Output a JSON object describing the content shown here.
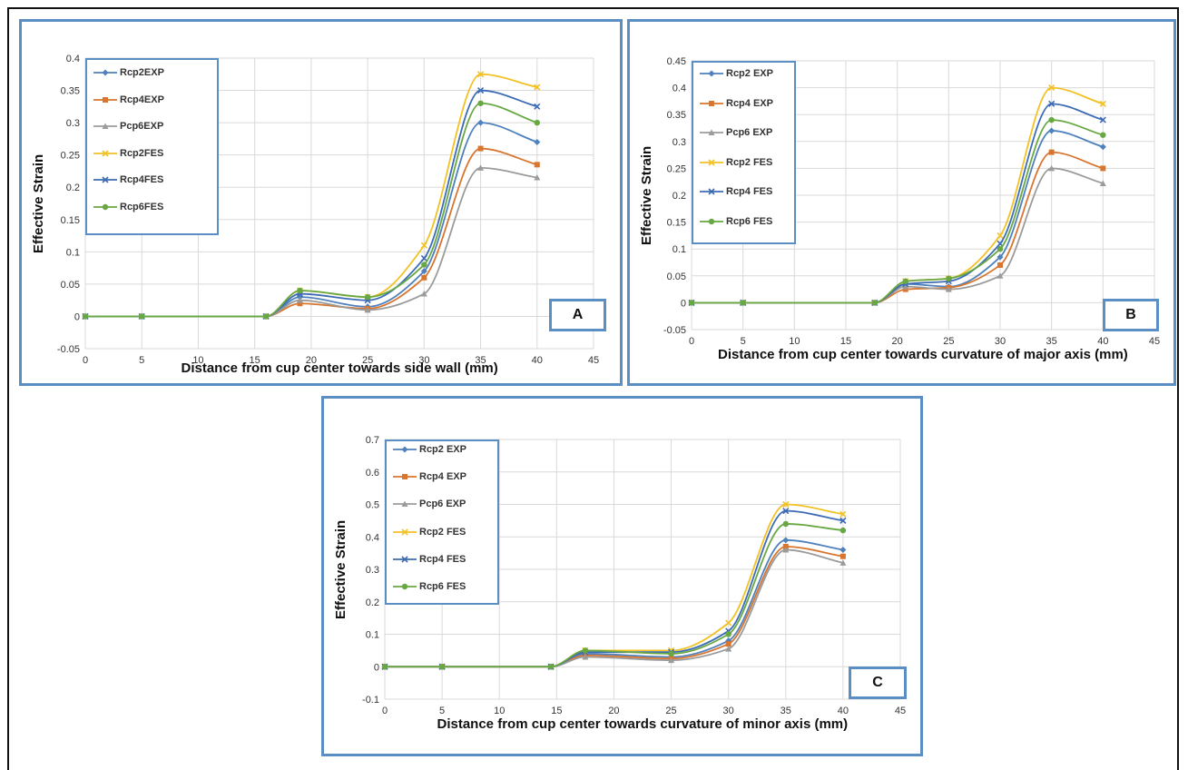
{
  "chart_data": [
    {
      "type": "line",
      "panel_label": "A",
      "xlabel": "Distance from cup center towards side wall (mm)",
      "ylabel": "Effective Strain",
      "xlim": [
        0,
        45
      ],
      "ylim": [
        -0.05,
        0.4
      ],
      "xticks": [
        0,
        5,
        10,
        15,
        20,
        25,
        30,
        35,
        40,
        45
      ],
      "yticks": [
        -0.05,
        0,
        0.05,
        0.1,
        0.15,
        0.2,
        0.25,
        0.3,
        0.35,
        0.4
      ],
      "ytick_labels": [
        "-0.05",
        "0",
        "0.05",
        "0.1",
        "0.15",
        "0.2",
        "0.25",
        "0.3",
        "0.35",
        "0.4"
      ],
      "grid": true,
      "legend_position": "top-left",
      "x": [
        0,
        5,
        16,
        19,
        25,
        30,
        35,
        40
      ],
      "series": [
        {
          "name": "Rcp2EXP",
          "color": "#4e81bd",
          "marker": "diamond",
          "values": [
            0,
            0,
            0,
            0.03,
            0.015,
            0.07,
            0.3,
            0.27
          ]
        },
        {
          "name": "Rcp4EXP",
          "color": "#d8752e",
          "marker": "square",
          "values": [
            0,
            0,
            0,
            0.02,
            0.012,
            0.06,
            0.26,
            0.235
          ]
        },
        {
          "name": "Pcp6EXP",
          "color": "#9b9b9b",
          "marker": "triangle",
          "values": [
            0,
            0,
            0,
            0.025,
            0.01,
            0.035,
            0.23,
            0.215
          ]
        },
        {
          "name": "Rcp2FES",
          "color": "#f2c124",
          "marker": "x",
          "values": [
            0,
            0,
            0,
            0.04,
            0.03,
            0.11,
            0.375,
            0.355
          ]
        },
        {
          "name": "Rcp4FES",
          "color": "#3d6bb5",
          "marker": "x",
          "values": [
            0,
            0,
            0,
            0.035,
            0.025,
            0.09,
            0.35,
            0.325
          ]
        },
        {
          "name": "Rcp6FES",
          "color": "#68a843",
          "marker": "circle",
          "values": [
            0,
            0,
            0,
            0.04,
            0.03,
            0.08,
            0.33,
            0.3
          ]
        }
      ]
    },
    {
      "type": "line",
      "panel_label": "B",
      "xlabel": "Distance from cup center towards curvature of major axis (mm)",
      "ylabel": "Effective Strain",
      "xlim": [
        0,
        45
      ],
      "ylim": [
        -0.05,
        0.45
      ],
      "xticks": [
        0,
        5,
        10,
        15,
        20,
        25,
        30,
        35,
        40,
        45
      ],
      "yticks": [
        -0.05,
        0,
        0.05,
        0.1,
        0.15,
        0.2,
        0.25,
        0.3,
        0.35,
        0.4,
        0.45
      ],
      "ytick_labels": [
        "-0.05",
        "0",
        "0.05",
        "0.1",
        "0.15",
        "0.2",
        "0.25",
        "0.3",
        "0.35",
        "0.4",
        "0.45"
      ],
      "grid": true,
      "legend_position": "top-left",
      "x": [
        0,
        5,
        17.8,
        20.8,
        25,
        30,
        35,
        40
      ],
      "series": [
        {
          "name": "Rcp2 EXP",
          "color": "#4e81bd",
          "marker": "diamond",
          "values": [
            0,
            0,
            0,
            0.035,
            0.03,
            0.085,
            0.32,
            0.29
          ]
        },
        {
          "name": "Rcp4 EXP",
          "color": "#d8752e",
          "marker": "square",
          "values": [
            0,
            0,
            0,
            0.025,
            0.028,
            0.07,
            0.28,
            0.25
          ]
        },
        {
          "name": "Pcp6 EXP",
          "color": "#9b9b9b",
          "marker": "triangle",
          "values": [
            0,
            0,
            0,
            0.03,
            0.025,
            0.05,
            0.25,
            0.222
          ]
        },
        {
          "name": "Rcp2 FES",
          "color": "#f2c124",
          "marker": "x",
          "values": [
            0,
            0,
            0,
            0.04,
            0.045,
            0.125,
            0.4,
            0.37
          ]
        },
        {
          "name": "Rcp4 FES",
          "color": "#3d6bb5",
          "marker": "x",
          "values": [
            0,
            0,
            0,
            0.035,
            0.04,
            0.11,
            0.37,
            0.34
          ]
        },
        {
          "name": "Rcp6  FES",
          "color": "#68a843",
          "marker": "circle",
          "values": [
            0,
            0,
            0,
            0.04,
            0.045,
            0.1,
            0.34,
            0.312
          ]
        }
      ]
    },
    {
      "type": "line",
      "panel_label": "C",
      "xlabel": "Distance from cup center towards curvature of minor axis (mm)",
      "ylabel": "Effective Strain",
      "xlim": [
        0,
        45
      ],
      "ylim": [
        -0.1,
        0.7
      ],
      "xticks": [
        0,
        5,
        10,
        15,
        20,
        25,
        30,
        35,
        40,
        45
      ],
      "yticks": [
        -0.1,
        0,
        0.1,
        0.2,
        0.3,
        0.4,
        0.5,
        0.6,
        0.7
      ],
      "ytick_labels": [
        "-0.1",
        "0",
        "0.1",
        "0.2",
        "0.3",
        "0.4",
        "0.5",
        "0.6",
        "0.7"
      ],
      "grid": true,
      "legend_position": "top-left",
      "x": [
        0,
        5,
        14.5,
        17.5,
        25,
        30,
        35,
        40
      ],
      "series": [
        {
          "name": "Rcp2 EXP",
          "color": "#4e81bd",
          "marker": "diamond",
          "values": [
            0,
            0,
            0,
            0.04,
            0.03,
            0.08,
            0.39,
            0.36
          ]
        },
        {
          "name": "Rcp4 EXP",
          "color": "#d8752e",
          "marker": "square",
          "values": [
            0,
            0,
            0,
            0.035,
            0.025,
            0.07,
            0.37,
            0.34
          ]
        },
        {
          "name": "Pcp6 EXP",
          "color": "#9b9b9b",
          "marker": "triangle",
          "values": [
            0,
            0,
            0,
            0.03,
            0.02,
            0.055,
            0.36,
            0.32
          ]
        },
        {
          "name": "Rcp2 FES",
          "color": "#f2c124",
          "marker": "x",
          "values": [
            0,
            0,
            0,
            0.05,
            0.05,
            0.135,
            0.5,
            0.47
          ]
        },
        {
          "name": "Rcp4 FES",
          "color": "#3d6bb5",
          "marker": "x",
          "values": [
            0,
            0,
            0,
            0.045,
            0.045,
            0.11,
            0.48,
            0.45
          ]
        },
        {
          "name": "Rcp6 FES",
          "color": "#68a843",
          "marker": "circle",
          "values": [
            0,
            0,
            0,
            0.05,
            0.04,
            0.1,
            0.44,
            0.42
          ]
        }
      ]
    }
  ]
}
